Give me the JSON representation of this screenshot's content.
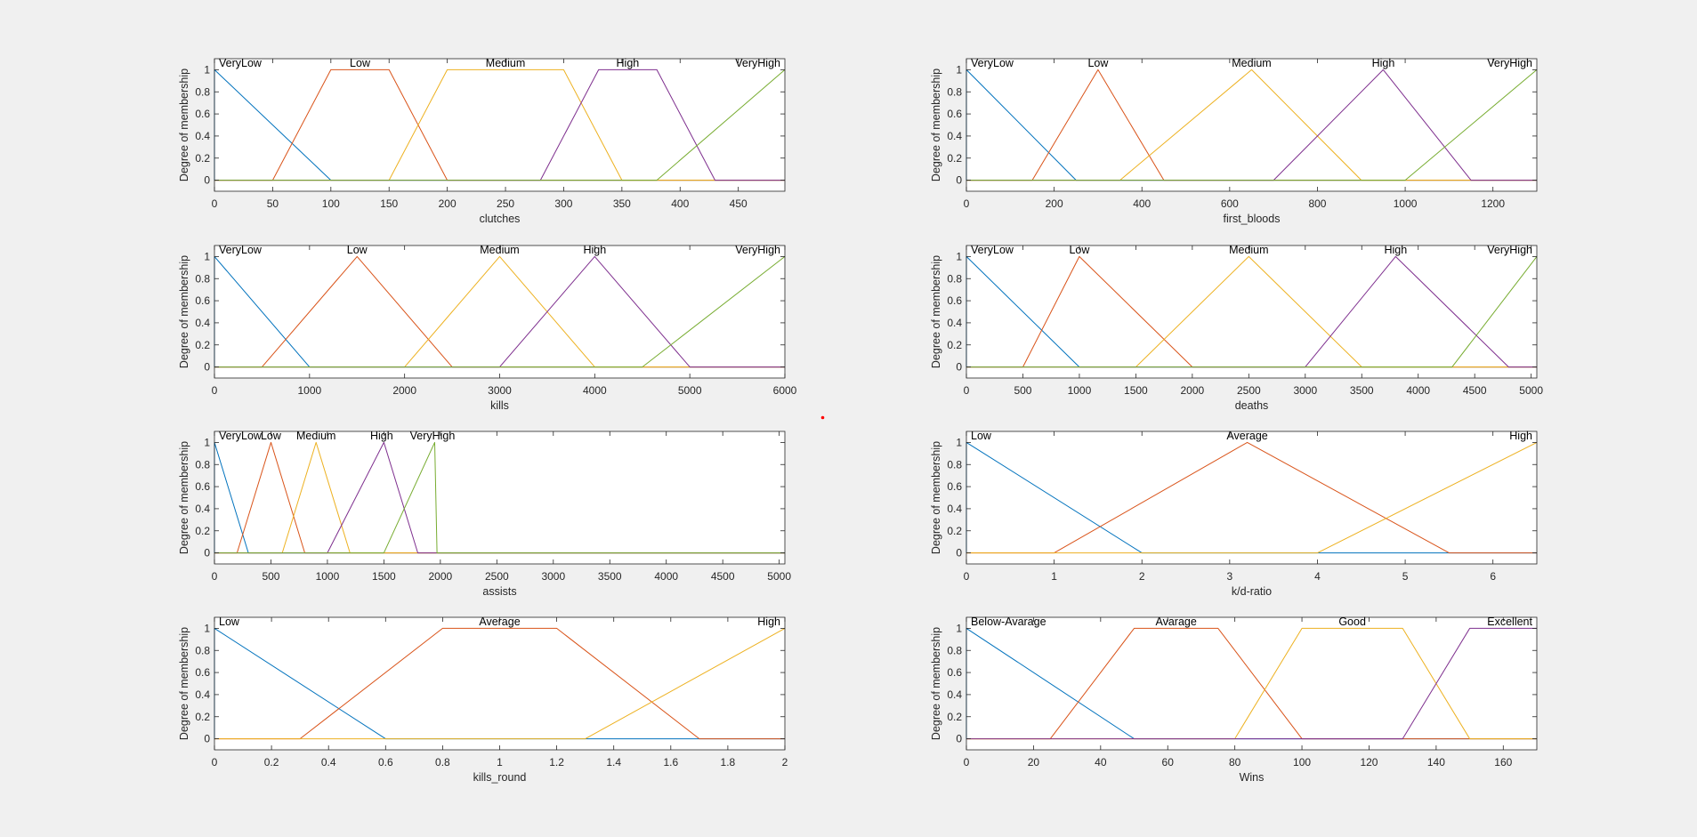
{
  "colors": [
    "#0072bd",
    "#d95319",
    "#edb120",
    "#7e2f8e",
    "#77ac30"
  ],
  "ylabel": "Degree of membership",
  "chart_data": [
    {
      "type": "line",
      "xlabel": "clutches",
      "ylabel": "Degree of membership",
      "xlim": [
        0,
        490
      ],
      "ylim": [
        -0.1,
        1.1
      ],
      "xticks": [
        0,
        50,
        100,
        150,
        200,
        250,
        300,
        350,
        400,
        450
      ],
      "yticks": [
        0,
        0.2,
        0.4,
        0.6,
        0.8,
        1
      ],
      "series": [
        {
          "name": "VeryLow",
          "x": [
            0,
            0,
            100,
            490
          ],
          "y": [
            0,
            1,
            0,
            0
          ]
        },
        {
          "name": "Low",
          "x": [
            0,
            50,
            100,
            150,
            200,
            490
          ],
          "y": [
            0,
            0,
            1,
            1,
            0,
            0
          ]
        },
        {
          "name": "Medium",
          "x": [
            0,
            150,
            200,
            300,
            350,
            490
          ],
          "y": [
            0,
            0,
            1,
            1,
            0,
            0
          ]
        },
        {
          "name": "High",
          "x": [
            0,
            280,
            330,
            380,
            430,
            490
          ],
          "y": [
            0,
            0,
            1,
            1,
            0,
            0
          ]
        },
        {
          "name": "VeryHigh",
          "x": [
            0,
            380,
            490
          ],
          "y": [
            0,
            0,
            1
          ]
        }
      ],
      "labels": [
        {
          "text": "VeryLow",
          "x": 0,
          "anchor": "start"
        },
        {
          "text": "Low",
          "x": 125,
          "anchor": "middle"
        },
        {
          "text": "Medium",
          "x": 250,
          "anchor": "middle"
        },
        {
          "text": "High",
          "x": 355,
          "anchor": "middle"
        },
        {
          "text": "VeryHigh",
          "x": 490,
          "anchor": "end"
        }
      ]
    },
    {
      "type": "line",
      "xlabel": "first_bloods",
      "ylabel": "Degree of membership",
      "xlim": [
        0,
        1300
      ],
      "ylim": [
        -0.1,
        1.1
      ],
      "xticks": [
        0,
        200,
        400,
        600,
        800,
        1000,
        1200
      ],
      "yticks": [
        0,
        0.2,
        0.4,
        0.6,
        0.8,
        1
      ],
      "series": [
        {
          "name": "VeryLow",
          "x": [
            0,
            0,
            250,
            1300
          ],
          "y": [
            0,
            1,
            0,
            0
          ]
        },
        {
          "name": "Low",
          "x": [
            0,
            150,
            300,
            450,
            1300
          ],
          "y": [
            0,
            0,
            1,
            0,
            0
          ]
        },
        {
          "name": "Medium",
          "x": [
            0,
            350,
            650,
            900,
            1300
          ],
          "y": [
            0,
            0,
            1,
            0,
            0
          ]
        },
        {
          "name": "High",
          "x": [
            0,
            700,
            950,
            1150,
            1300
          ],
          "y": [
            0,
            0,
            1,
            0,
            0
          ]
        },
        {
          "name": "VeryHigh",
          "x": [
            0,
            1000,
            1300
          ],
          "y": [
            0,
            0,
            1
          ]
        }
      ],
      "labels": [
        {
          "text": "VeryLow",
          "x": 0,
          "anchor": "start"
        },
        {
          "text": "Low",
          "x": 300,
          "anchor": "middle"
        },
        {
          "text": "Medium",
          "x": 650,
          "anchor": "middle"
        },
        {
          "text": "High",
          "x": 950,
          "anchor": "middle"
        },
        {
          "text": "VeryHigh",
          "x": 1300,
          "anchor": "end"
        }
      ]
    },
    {
      "type": "line",
      "xlabel": "kills",
      "ylabel": "Degree of membership",
      "xlim": [
        0,
        6000
      ],
      "ylim": [
        -0.1,
        1.1
      ],
      "xticks": [
        0,
        1000,
        2000,
        3000,
        4000,
        5000,
        6000
      ],
      "yticks": [
        0,
        0.2,
        0.4,
        0.6,
        0.8,
        1
      ],
      "series": [
        {
          "name": "VeryLow",
          "x": [
            0,
            0,
            1000,
            6000
          ],
          "y": [
            0,
            1,
            0,
            0
          ]
        },
        {
          "name": "Low",
          "x": [
            0,
            500,
            1500,
            2500,
            6000
          ],
          "y": [
            0,
            0,
            1,
            0,
            0
          ]
        },
        {
          "name": "Medium",
          "x": [
            0,
            2000,
            3000,
            4000,
            6000
          ],
          "y": [
            0,
            0,
            1,
            0,
            0
          ]
        },
        {
          "name": "High",
          "x": [
            0,
            3000,
            4000,
            5000,
            6000
          ],
          "y": [
            0,
            0,
            1,
            0,
            0
          ]
        },
        {
          "name": "VeryHigh",
          "x": [
            0,
            4500,
            6000
          ],
          "y": [
            0,
            0,
            1
          ]
        }
      ],
      "labels": [
        {
          "text": "VeryLow",
          "x": 0,
          "anchor": "start"
        },
        {
          "text": "Low",
          "x": 1500,
          "anchor": "middle"
        },
        {
          "text": "Medium",
          "x": 3000,
          "anchor": "middle"
        },
        {
          "text": "High",
          "x": 4000,
          "anchor": "middle"
        },
        {
          "text": "VeryHigh",
          "x": 6000,
          "anchor": "end"
        }
      ]
    },
    {
      "type": "line",
      "xlabel": "deaths",
      "ylabel": "Degree of membership",
      "xlim": [
        0,
        5050
      ],
      "ylim": [
        -0.1,
        1.1
      ],
      "xticks": [
        0,
        500,
        1000,
        1500,
        2000,
        2500,
        3000,
        3500,
        4000,
        4500,
        5000
      ],
      "yticks": [
        0,
        0.2,
        0.4,
        0.6,
        0.8,
        1
      ],
      "series": [
        {
          "name": "VeryLow",
          "x": [
            0,
            0,
            1000,
            5050
          ],
          "y": [
            0,
            1,
            0,
            0
          ]
        },
        {
          "name": "Low",
          "x": [
            0,
            500,
            1000,
            2000,
            5050
          ],
          "y": [
            0,
            0,
            1,
            0,
            0
          ]
        },
        {
          "name": "Medium",
          "x": [
            0,
            1500,
            2500,
            3500,
            5050
          ],
          "y": [
            0,
            0,
            1,
            0,
            0
          ]
        },
        {
          "name": "High",
          "x": [
            0,
            3000,
            3800,
            4800,
            5050
          ],
          "y": [
            0,
            0,
            1,
            0,
            0
          ]
        },
        {
          "name": "VeryHigh",
          "x": [
            0,
            4300,
            5050
          ],
          "y": [
            0,
            0,
            1
          ]
        }
      ],
      "labels": [
        {
          "text": "VeryLow",
          "x": 0,
          "anchor": "start"
        },
        {
          "text": "Low",
          "x": 1000,
          "anchor": "middle"
        },
        {
          "text": "Medium",
          "x": 2500,
          "anchor": "middle"
        },
        {
          "text": "High",
          "x": 3800,
          "anchor": "middle"
        },
        {
          "text": "VeryHigh",
          "x": 5050,
          "anchor": "end"
        }
      ]
    },
    {
      "type": "line",
      "xlabel": "assists",
      "ylabel": "Degree of membership",
      "xlim": [
        0,
        5050
      ],
      "ylim": [
        -0.1,
        1.1
      ],
      "xticks": [
        0,
        500,
        1000,
        1500,
        2000,
        2500,
        3000,
        3500,
        4000,
        4500,
        5000
      ],
      "yticks": [
        0,
        0.2,
        0.4,
        0.6,
        0.8,
        1
      ],
      "series": [
        {
          "name": "VeryLow",
          "x": [
            0,
            0,
            300,
            5050
          ],
          "y": [
            0,
            1,
            0,
            0
          ]
        },
        {
          "name": "Low",
          "x": [
            0,
            200,
            500,
            800,
            5050
          ],
          "y": [
            0,
            0,
            1,
            0,
            0
          ]
        },
        {
          "name": "Medium",
          "x": [
            0,
            600,
            900,
            1200,
            5050
          ],
          "y": [
            0,
            0,
            1,
            0,
            0
          ]
        },
        {
          "name": "High",
          "x": [
            0,
            1000,
            1500,
            1800,
            5050
          ],
          "y": [
            0,
            0,
            1,
            0,
            0
          ]
        },
        {
          "name": "VeryHigh",
          "x": [
            0,
            1500,
            1950,
            1970,
            5050
          ],
          "y": [
            0,
            0,
            1,
            0,
            0
          ]
        }
      ],
      "labels": [
        {
          "text": "VeryLow",
          "x": 0,
          "anchor": "start"
        },
        {
          "text": "Low",
          "x": 500,
          "anchor": "middle"
        },
        {
          "text": "Medium",
          "x": 900,
          "anchor": "middle"
        },
        {
          "text": "High",
          "x": 1480,
          "anchor": "middle"
        },
        {
          "text": "VeryHigh",
          "x": 1930,
          "anchor": "middle"
        }
      ]
    },
    {
      "type": "line",
      "xlabel": "k/d-ratio",
      "ylabel": "Degree of membership",
      "xlim": [
        0,
        6.5
      ],
      "ylim": [
        -0.1,
        1.1
      ],
      "xticks": [
        0,
        1,
        2,
        3,
        4,
        5,
        6
      ],
      "yticks": [
        0,
        0.2,
        0.4,
        0.6,
        0.8,
        1
      ],
      "series": [
        {
          "name": "Low",
          "x": [
            0,
            0,
            2,
            6.5
          ],
          "y": [
            0,
            1,
            0,
            0
          ]
        },
        {
          "name": "Average",
          "x": [
            0,
            1,
            3.2,
            5.5,
            6.5
          ],
          "y": [
            0,
            0,
            1,
            0,
            0
          ]
        },
        {
          "name": "High",
          "x": [
            0,
            4,
            6.5
          ],
          "y": [
            0,
            0,
            1
          ]
        }
      ],
      "labels": [
        {
          "text": "Low",
          "x": 0,
          "anchor": "start"
        },
        {
          "text": "Average",
          "x": 3.2,
          "anchor": "middle"
        },
        {
          "text": "High",
          "x": 6.5,
          "anchor": "end"
        }
      ]
    },
    {
      "type": "line",
      "xlabel": "kills_round",
      "ylabel": "Degree of membership",
      "xlim": [
        0,
        2
      ],
      "ylim": [
        -0.1,
        1.1
      ],
      "xticks": [
        0,
        0.2,
        0.4,
        0.6,
        0.8,
        1,
        1.2,
        1.4,
        1.6,
        1.8,
        2
      ],
      "yticks": [
        0,
        0.2,
        0.4,
        0.6,
        0.8,
        1
      ],
      "series": [
        {
          "name": "Low",
          "x": [
            0,
            0,
            0.6,
            2
          ],
          "y": [
            0,
            1,
            0,
            0
          ]
        },
        {
          "name": "Average",
          "x": [
            0,
            0.3,
            0.8,
            1.2,
            1.7,
            2
          ],
          "y": [
            0,
            0,
            1,
            1,
            0,
            0
          ]
        },
        {
          "name": "High",
          "x": [
            0,
            1.3,
            2
          ],
          "y": [
            0,
            0,
            1
          ]
        }
      ],
      "labels": [
        {
          "text": "Low",
          "x": 0,
          "anchor": "start"
        },
        {
          "text": "Average",
          "x": 1,
          "anchor": "middle"
        },
        {
          "text": "High",
          "x": 2,
          "anchor": "end"
        }
      ]
    },
    {
      "type": "line",
      "xlabel": "Wins",
      "ylabel": "Degree of membership",
      "xlim": [
        0,
        170
      ],
      "ylim": [
        -0.1,
        1.1
      ],
      "xticks": [
        0,
        20,
        40,
        60,
        80,
        100,
        120,
        140,
        160
      ],
      "yticks": [
        0,
        0.2,
        0.4,
        0.6,
        0.8,
        1
      ],
      "series": [
        {
          "name": "Below-Avarage",
          "x": [
            0,
            0,
            50,
            170
          ],
          "y": [
            0,
            1,
            0,
            0
          ]
        },
        {
          "name": "Avarage",
          "x": [
            0,
            25,
            50,
            75,
            100,
            170
          ],
          "y": [
            0,
            0,
            1,
            1,
            0,
            0
          ]
        },
        {
          "name": "Good",
          "x": [
            0,
            80,
            100,
            130,
            150,
            170
          ],
          "y": [
            0,
            0,
            1,
            1,
            0,
            0
          ]
        },
        {
          "name": "Excellent",
          "x": [
            0,
            130,
            150,
            170
          ],
          "y": [
            0,
            0,
            1,
            1
          ]
        }
      ],
      "labels": [
        {
          "text": "Below-Avarage",
          "x": 0,
          "anchor": "start"
        },
        {
          "text": "Avarage",
          "x": 62.5,
          "anchor": "middle"
        },
        {
          "text": "Good",
          "x": 115,
          "anchor": "middle"
        },
        {
          "text": "Excellent",
          "x": 170,
          "anchor": "end"
        }
      ]
    }
  ]
}
